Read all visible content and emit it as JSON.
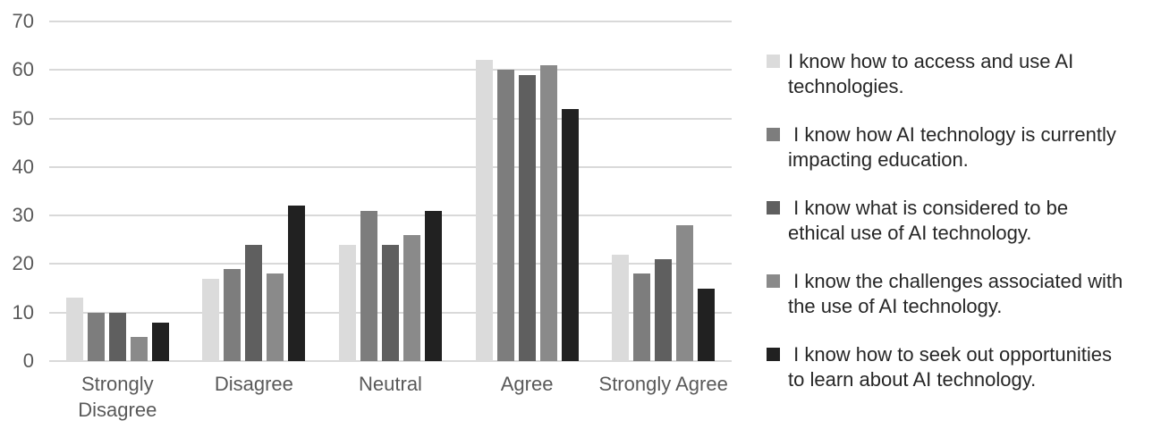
{
  "chart_data": {
    "type": "bar",
    "categories": [
      "Strongly Disagree",
      "Disagree",
      "Neutral",
      "Agree",
      "Strongly Agree"
    ],
    "category_label_lines": [
      [
        "Strongly",
        "Disagree"
      ],
      [
        "Disagree"
      ],
      [
        "Neutral"
      ],
      [
        "Agree"
      ],
      [
        "Strongly Agree"
      ]
    ],
    "series": [
      {
        "name": "I know how to access and use AI technologies.",
        "color": "#DBDBDB",
        "values": [
          13,
          17,
          24,
          62,
          22
        ],
        "legend_lines": [
          "I know how to access and use AI",
          "technologies."
        ]
      },
      {
        "name": "I know how AI technology is currently impacting education.",
        "color": "#7D7D7D",
        "values": [
          10,
          19,
          31,
          60,
          18
        ],
        "legend_lines": [
          " I know how AI technology is currently",
          "impacting education."
        ]
      },
      {
        "name": "I know what is considered to be ethical use of AI technology.",
        "color": "#5F5F5F",
        "values": [
          10,
          24,
          24,
          59,
          21
        ],
        "legend_lines": [
          " I know what is considered to be",
          "ethical use of AI technology."
        ]
      },
      {
        "name": "I know the challenges associated with the use of AI technology.",
        "color": "#8A8A8A",
        "values": [
          5,
          18,
          26,
          61,
          28
        ],
        "legend_lines": [
          " I know the challenges associated with",
          "the use of AI technology."
        ]
      },
      {
        "name": "I know how to seek out opportunities to learn about AI technology.",
        "color": "#212121",
        "values": [
          8,
          32,
          31,
          52,
          15
        ],
        "legend_lines": [
          " I know how to seek out opportunities",
          "to learn about AI technology."
        ]
      }
    ],
    "y_ticks": [
      0,
      10,
      20,
      30,
      40,
      50,
      60,
      70
    ],
    "ylim": [
      0,
      70
    ],
    "grid": true,
    "legend_position": "right",
    "gridline_color": "#D9D9D9",
    "axis_label_color": "#595959",
    "legend_text_color": "#262626",
    "background_color": "#FFFFFF"
  }
}
